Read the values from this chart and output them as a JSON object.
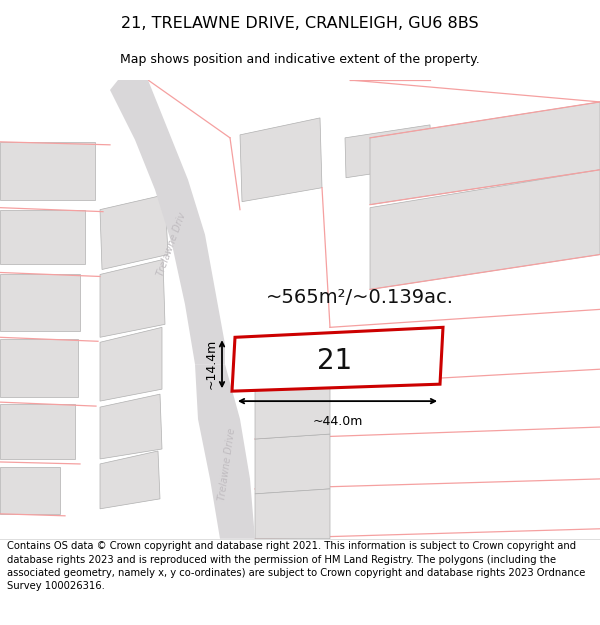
{
  "title": "21, TRELAWNE DRIVE, CRANLEIGH, GU6 8BS",
  "subtitle": "Map shows position and indicative extent of the property.",
  "footer": "Contains OS data © Crown copyright and database right 2021. This information is subject to Crown copyright and database rights 2023 and is reproduced with the permission of HM Land Registry. The polygons (including the associated geometry, namely x, y co-ordinates) are subject to Crown copyright and database rights 2023 Ordnance Survey 100026316.",
  "area_label": "~565m²/~0.139ac.",
  "width_label": "~44.0m",
  "height_label": "~14.4m",
  "plot_number": "21",
  "map_bg": "#f7f7f7",
  "road_fill": "#d9d7d9",
  "plot_fill": "#ffffff",
  "plot_border": "#cc0000",
  "building_fill": "#e0dede",
  "building_edge": "#b0b0b0",
  "parcel_line": "#f5a0a0",
  "dim_color": "#111111",
  "road_label_color": "#c0bcc0",
  "title_fontsize": 11.5,
  "subtitle_fontsize": 9,
  "footer_fontsize": 7.2,
  "area_fontsize": 14,
  "number_fontsize": 20,
  "dim_fontsize": 9
}
